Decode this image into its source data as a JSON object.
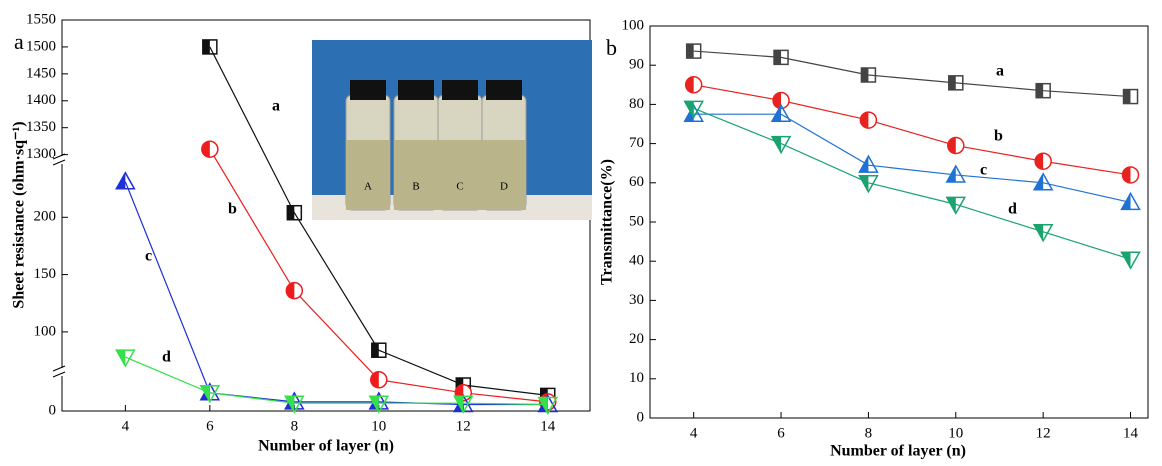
{
  "chart_data": [
    {
      "type": "line",
      "panel_label": "a",
      "xlabel": "Number of layer (n)",
      "ylabel": "Sheet resistance (ohm·sq⁻¹)",
      "x": [
        4,
        6,
        8,
        10,
        12,
        14
      ],
      "xlim": [
        2.5,
        15
      ],
      "xticks": [
        4,
        6,
        8,
        10,
        12,
        14
      ],
      "y_segments": [
        {
          "ylim": [
            0,
            30
          ],
          "yticks": [
            0
          ]
        },
        {
          "ylim": [
            65,
            250
          ],
          "yticks": [
            100,
            150,
            200
          ]
        },
        {
          "ylim": [
            1290,
            1550
          ],
          "yticks": [
            1300,
            1350,
            1400,
            1450,
            1500,
            1550
          ]
        }
      ],
      "series": [
        {
          "name": "a",
          "color": "#111111",
          "marker": "square",
          "values": [
            null,
            1500,
            204,
            84,
            20,
            12
          ]
        },
        {
          "name": "b",
          "color": "#ee1c1c",
          "marker": "circle",
          "values": [
            null,
            1310,
            136,
            24,
            14,
            7
          ]
        },
        {
          "name": "c",
          "color": "#1d2fd6",
          "marker": "triangle",
          "values": [
            231,
            14,
            7,
            7,
            5,
            5
          ]
        },
        {
          "name": "d",
          "color": "#35e04a",
          "marker": "triangle-down",
          "values": [
            78,
            14,
            6,
            6,
            6,
            5
          ]
        }
      ],
      "inset": {
        "labels": [
          "A",
          "B",
          "C",
          "D"
        ]
      }
    },
    {
      "type": "line",
      "panel_label": "b",
      "xlabel": "Number of layer (n)",
      "ylabel": "Transmittance(%)",
      "x": [
        4,
        6,
        8,
        10,
        12,
        14
      ],
      "xlim": [
        3,
        14.4
      ],
      "xticks": [
        4,
        6,
        8,
        10,
        12,
        14
      ],
      "ylim": [
        0,
        100
      ],
      "yticks": [
        0,
        10,
        20,
        30,
        40,
        50,
        60,
        70,
        80,
        90,
        100
      ],
      "series": [
        {
          "name": "a",
          "color": "#444444",
          "marker": "square",
          "values": [
            93.6,
            92,
            87.5,
            85.5,
            83.5,
            82
          ]
        },
        {
          "name": "b",
          "color": "#e8231f",
          "marker": "circle",
          "values": [
            85,
            81,
            76,
            69.5,
            65.5,
            62
          ]
        },
        {
          "name": "c",
          "color": "#1f72d4",
          "marker": "triangle",
          "values": [
            77.5,
            77.5,
            64.5,
            62,
            60,
            55
          ]
        },
        {
          "name": "d",
          "color": "#1aa36f",
          "marker": "triangle-down",
          "values": [
            79,
            70,
            60,
            54.5,
            47.5,
            40.5
          ]
        }
      ]
    }
  ]
}
